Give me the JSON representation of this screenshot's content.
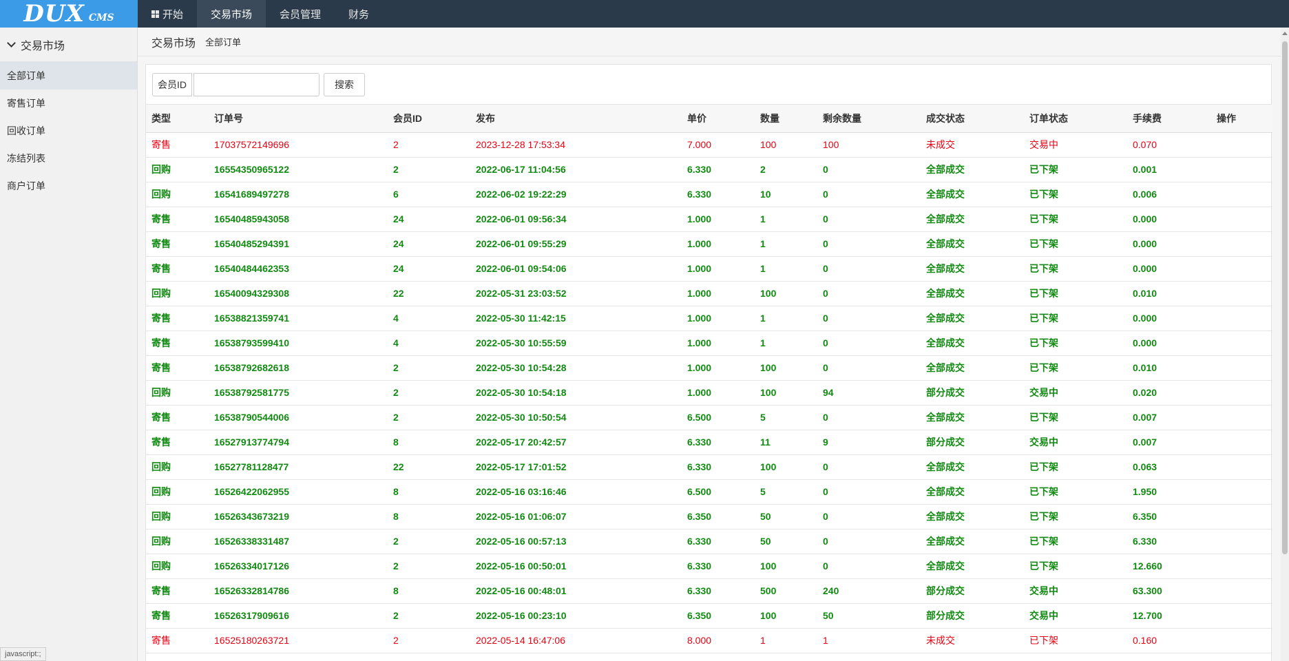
{
  "logo": {
    "main": "DUX",
    "sub": "CMS"
  },
  "topnav": [
    {
      "label": "开始",
      "icon": "windows-icon"
    },
    {
      "label": "交易市场"
    },
    {
      "label": "会员管理"
    },
    {
      "label": "财务"
    }
  ],
  "sidebar": {
    "title": "交易市场",
    "items": [
      "全部订单",
      "寄售订单",
      "回收订单",
      "冻结列表",
      "商户订单"
    ]
  },
  "breadcrumb": {
    "section": "交易市场",
    "page": "全部订单"
  },
  "search": {
    "label": "会员ID",
    "value": "",
    "placeholder": "",
    "button": "搜索"
  },
  "table": {
    "headers": [
      "类型",
      "订单号",
      "会员ID",
      "发布",
      "单价",
      "数量",
      "剩余数量",
      "成交状态",
      "订单状态",
      "手续费",
      "操作"
    ],
    "rows": [
      [
        "寄售",
        "17037572149696",
        "2",
        "2023-12-28 17:53:34",
        "7.000",
        "100",
        "100",
        "未成交",
        "交易中",
        "0.070",
        ""
      ],
      [
        "回购",
        "16554350965122",
        "2",
        "2022-06-17 11:04:56",
        "6.330",
        "2",
        "0",
        "全部成交",
        "已下架",
        "0.001",
        ""
      ],
      [
        "回购",
        "16541689497278",
        "6",
        "2022-06-02 19:22:29",
        "6.330",
        "10",
        "0",
        "全部成交",
        "已下架",
        "0.006",
        ""
      ],
      [
        "寄售",
        "16540485943058",
        "24",
        "2022-06-01 09:56:34",
        "1.000",
        "1",
        "0",
        "全部成交",
        "已下架",
        "0.000",
        ""
      ],
      [
        "寄售",
        "16540485294391",
        "24",
        "2022-06-01 09:55:29",
        "1.000",
        "1",
        "0",
        "全部成交",
        "已下架",
        "0.000",
        ""
      ],
      [
        "寄售",
        "16540484462353",
        "24",
        "2022-06-01 09:54:06",
        "1.000",
        "1",
        "0",
        "全部成交",
        "已下架",
        "0.000",
        ""
      ],
      [
        "回购",
        "16540094329308",
        "22",
        "2022-05-31 23:03:52",
        "1.000",
        "100",
        "0",
        "全部成交",
        "已下架",
        "0.010",
        ""
      ],
      [
        "寄售",
        "16538821359741",
        "4",
        "2022-05-30 11:42:15",
        "1.000",
        "1",
        "0",
        "全部成交",
        "已下架",
        "0.000",
        ""
      ],
      [
        "寄售",
        "16538793599410",
        "4",
        "2022-05-30 10:55:59",
        "1.000",
        "1",
        "0",
        "全部成交",
        "已下架",
        "0.000",
        ""
      ],
      [
        "寄售",
        "16538792682618",
        "2",
        "2022-05-30 10:54:28",
        "1.000",
        "100",
        "0",
        "全部成交",
        "已下架",
        "0.010",
        ""
      ],
      [
        "回购",
        "16538792581775",
        "2",
        "2022-05-30 10:54:18",
        "1.000",
        "100",
        "94",
        "部分成交",
        "交易中",
        "0.020",
        ""
      ],
      [
        "寄售",
        "16538790544006",
        "2",
        "2022-05-30 10:50:54",
        "6.500",
        "5",
        "0",
        "全部成交",
        "已下架",
        "0.007",
        ""
      ],
      [
        "寄售",
        "16527913774794",
        "8",
        "2022-05-17 20:42:57",
        "6.330",
        "11",
        "9",
        "部分成交",
        "交易中",
        "0.007",
        ""
      ],
      [
        "回购",
        "16527781128477",
        "22",
        "2022-05-17 17:01:52",
        "6.330",
        "100",
        "0",
        "全部成交",
        "已下架",
        "0.063",
        ""
      ],
      [
        "回购",
        "16526422062955",
        "8",
        "2022-05-16 03:16:46",
        "6.500",
        "5",
        "0",
        "全部成交",
        "已下架",
        "1.950",
        ""
      ],
      [
        "回购",
        "16526343673219",
        "8",
        "2022-05-16 01:06:07",
        "6.350",
        "50",
        "0",
        "全部成交",
        "已下架",
        "6.350",
        ""
      ],
      [
        "回购",
        "16526338331487",
        "2",
        "2022-05-16 00:57:13",
        "6.330",
        "50",
        "0",
        "全部成交",
        "已下架",
        "6.330",
        ""
      ],
      [
        "回购",
        "16526334017126",
        "2",
        "2022-05-16 00:50:01",
        "6.330",
        "100",
        "0",
        "全部成交",
        "已下架",
        "12.660",
        ""
      ],
      [
        "寄售",
        "16526332814786",
        "8",
        "2022-05-16 00:48:01",
        "6.330",
        "500",
        "240",
        "部分成交",
        "交易中",
        "63.300",
        ""
      ],
      [
        "寄售",
        "16526317909616",
        "2",
        "2022-05-16 00:23:10",
        "6.350",
        "100",
        "50",
        "部分成交",
        "交易中",
        "12.700",
        ""
      ],
      [
        "寄售",
        "16525180263721",
        "2",
        "2022-05-14 16:47:06",
        "8.000",
        "1",
        "1",
        "未成交",
        "已下架",
        "0.160",
        ""
      ]
    ],
    "row_styles": [
      "red",
      "green",
      "green",
      "green",
      "green",
      "green",
      "green",
      "green",
      "green",
      "green",
      "green",
      "green",
      "green",
      "green",
      "green",
      "green",
      "green",
      "green",
      "green",
      "green",
      "red"
    ]
  },
  "status_bar": "javascript:;",
  "colors": {
    "red": "#e60012",
    "green": "#118a11",
    "topbar": "#2b3a4a",
    "logo": "#3b9be6"
  }
}
